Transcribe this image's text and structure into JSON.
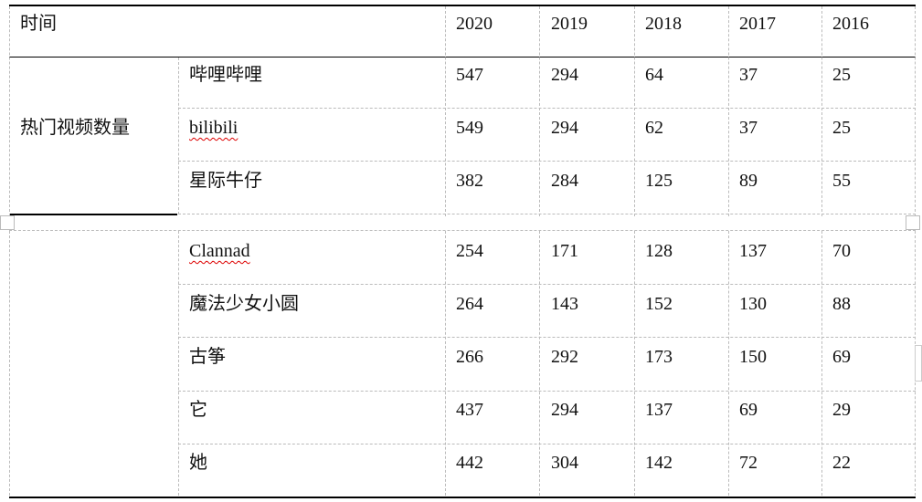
{
  "table": {
    "header": {
      "corner": "时间",
      "years": [
        "2020",
        "2019",
        "2018",
        "2017",
        "2016"
      ]
    },
    "group_label": "热门视频数量",
    "rows": [
      {
        "name": "哔哩哔哩",
        "values": [
          "547",
          "294",
          "64",
          "37",
          "25"
        ]
      },
      {
        "name": "bilibili",
        "values": [
          "549",
          "294",
          "62",
          "37",
          "25"
        ]
      },
      {
        "name": "星际牛仔",
        "values": [
          "382",
          "284",
          "125",
          "89",
          "55"
        ]
      },
      {
        "name": "Clannad",
        "values": [
          "254",
          "171",
          "128",
          "137",
          "70"
        ]
      },
      {
        "name": "魔法少女小圆",
        "values": [
          "264",
          "143",
          "152",
          "130",
          "88"
        ]
      },
      {
        "name": "古筝",
        "values": [
          "266",
          "292",
          "173",
          "150",
          "69"
        ]
      },
      {
        "name": "它",
        "values": [
          "437",
          "294",
          "137",
          "69",
          "29"
        ]
      },
      {
        "name": "她",
        "values": [
          "442",
          "304",
          "142",
          "72",
          "22"
        ]
      }
    ]
  }
}
